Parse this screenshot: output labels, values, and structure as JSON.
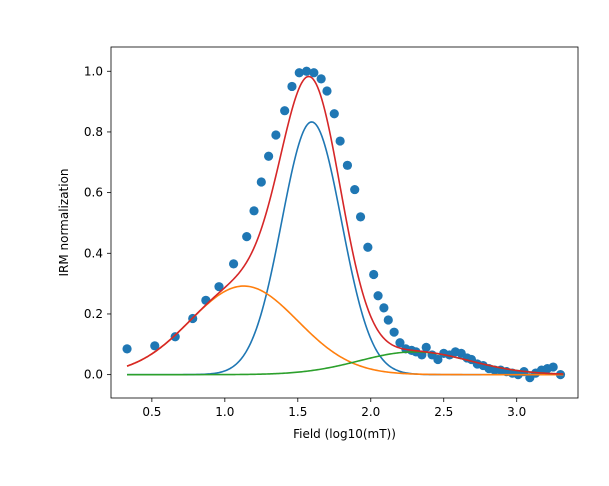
{
  "chart_data": {
    "type": "scatter",
    "title": "",
    "xlabel": "Field (log10(mT))",
    "ylabel": "IRM normalization",
    "xlim": [
      0.22,
      3.42
    ],
    "ylim": [
      -0.077,
      1.08
    ],
    "x_ticks": [
      0.5,
      1.0,
      1.5,
      2.0,
      2.5,
      3.0
    ],
    "x_tick_labels": [
      "0.5",
      "1.0",
      "1.5",
      "2.0",
      "2.5",
      "3.0"
    ],
    "y_ticks": [
      0.0,
      0.2,
      0.4,
      0.6,
      0.8,
      1.0
    ],
    "y_tick_labels": [
      "0.0",
      "0.2",
      "0.4",
      "0.6",
      "0.8",
      "1.0"
    ],
    "grid": false,
    "legend": "none",
    "scatter": {
      "color": "#1f77b4",
      "points": [
        [
          0.33,
          0.085
        ],
        [
          0.52,
          0.095
        ],
        [
          0.66,
          0.125
        ],
        [
          0.78,
          0.185
        ],
        [
          0.87,
          0.245
        ],
        [
          0.96,
          0.29
        ],
        [
          1.06,
          0.365
        ],
        [
          1.15,
          0.455
        ],
        [
          1.2,
          0.54
        ],
        [
          1.25,
          0.635
        ],
        [
          1.3,
          0.72
        ],
        [
          1.35,
          0.79
        ],
        [
          1.41,
          0.87
        ],
        [
          1.46,
          0.95
        ],
        [
          1.51,
          0.995
        ],
        [
          1.56,
          1.0
        ],
        [
          1.61,
          0.995
        ],
        [
          1.66,
          0.975
        ],
        [
          1.7,
          0.935
        ],
        [
          1.75,
          0.86
        ],
        [
          1.79,
          0.77
        ],
        [
          1.84,
          0.69
        ],
        [
          1.89,
          0.61
        ],
        [
          1.93,
          0.52
        ],
        [
          1.98,
          0.42
        ],
        [
          2.02,
          0.33
        ],
        [
          2.05,
          0.26
        ],
        [
          2.09,
          0.22
        ],
        [
          2.12,
          0.18
        ],
        [
          2.16,
          0.14
        ],
        [
          2.2,
          0.105
        ],
        [
          2.24,
          0.085
        ],
        [
          2.28,
          0.08
        ],
        [
          2.31,
          0.075
        ],
        [
          2.35,
          0.065
        ],
        [
          2.38,
          0.09
        ],
        [
          2.42,
          0.065
        ],
        [
          2.46,
          0.05
        ],
        [
          2.5,
          0.07
        ],
        [
          2.54,
          0.065
        ],
        [
          2.58,
          0.075
        ],
        [
          2.62,
          0.07
        ],
        [
          2.66,
          0.055
        ],
        [
          2.69,
          0.05
        ],
        [
          2.73,
          0.035
        ],
        [
          2.77,
          0.03
        ],
        [
          2.81,
          0.02
        ],
        [
          2.85,
          0.015
        ],
        [
          2.89,
          0.015
        ],
        [
          2.93,
          0.01
        ],
        [
          2.97,
          0.005
        ],
        [
          3.01,
          0.0
        ],
        [
          3.05,
          0.01
        ],
        [
          3.09,
          -0.01
        ],
        [
          3.13,
          0.005
        ],
        [
          3.17,
          0.015
        ],
        [
          3.21,
          0.02
        ],
        [
          3.25,
          0.025
        ],
        [
          3.3,
          0.0
        ]
      ]
    },
    "components": [
      {
        "color": "#1f77b4",
        "type": "gaussian",
        "amplitude": 0.833,
        "mean": 1.595,
        "sigma": 0.205,
        "x_range": [
          0.33,
          3.32
        ]
      },
      {
        "color": "#ff7f0e",
        "type": "gaussian",
        "amplitude": 0.292,
        "mean": 1.13,
        "sigma": 0.37,
        "x_range": [
          0.33,
          3.32
        ]
      },
      {
        "color": "#2ca02c",
        "type": "gaussian",
        "amplitude": 0.075,
        "mean": 2.3,
        "sigma": 0.38,
        "x_range": [
          0.33,
          3.32
        ]
      }
    ],
    "total_fit": {
      "color": "#d62728",
      "type": "sum_of_components",
      "x_range": [
        0.33,
        3.32
      ]
    }
  }
}
